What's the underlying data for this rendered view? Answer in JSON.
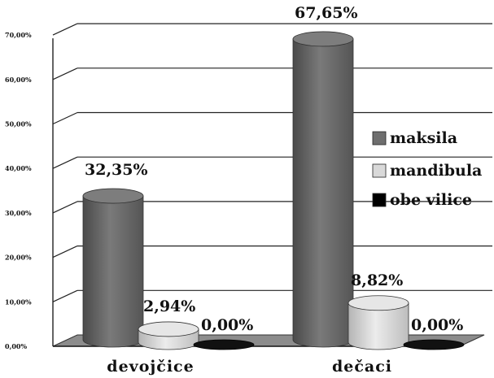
{
  "chart_data": {
    "type": "bar",
    "style": "3d-cylinder",
    "categories": [
      "devojčice",
      "dečaci"
    ],
    "series": [
      {
        "name": "maksila",
        "values": [
          32.35,
          67.65
        ],
        "labels": [
          "32,35%",
          "67,65%"
        ],
        "color": "#6e6e6e"
      },
      {
        "name": "mandibula",
        "values": [
          2.94,
          8.82
        ],
        "labels": [
          "2,94%",
          "8,82%"
        ],
        "color": "#d2d2d2"
      },
      {
        "name": "obe vilice",
        "values": [
          0,
          0
        ],
        "labels": [
          "0,00%",
          "0,00%"
        ],
        "color": "#050505"
      }
    ],
    "ylim": [
      0,
      70
    ],
    "yticks": [
      {
        "value": 0,
        "label": "0,00%"
      },
      {
        "value": 10,
        "label": "10,00%"
      },
      {
        "value": 20,
        "label": "20,00%"
      },
      {
        "value": 30,
        "label": "30,00%"
      },
      {
        "value": 40,
        "label": "40,00%"
      },
      {
        "value": 50,
        "label": "50,00%"
      },
      {
        "value": 60,
        "label": "60,00%"
      },
      {
        "value": 70,
        "label": "70,00%"
      }
    ],
    "grid": true,
    "legend_position": "right"
  }
}
